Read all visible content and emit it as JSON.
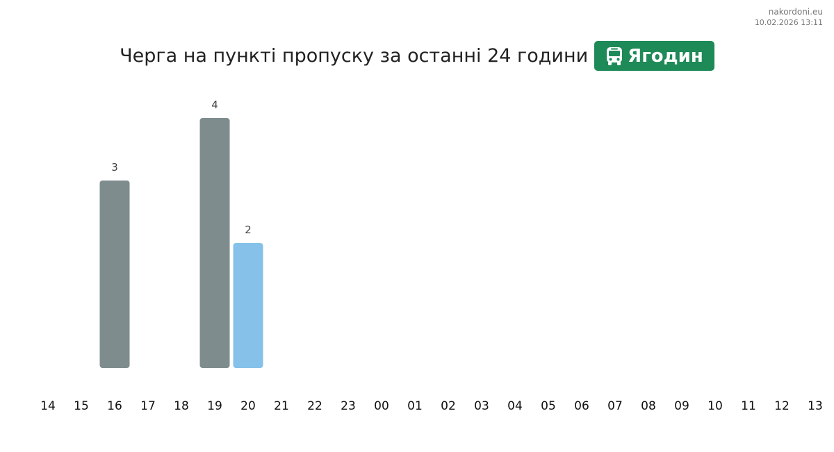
{
  "watermark": {
    "site": "nakordoni.eu",
    "date": "10.02.2026 13:11"
  },
  "chart_data": {
    "type": "bar",
    "title": "Черга на пункті пропуску за останні 24 години",
    "badge": "Ягодин",
    "categories": [
      "14",
      "15",
      "16",
      "17",
      "18",
      "19",
      "20",
      "21",
      "22",
      "23",
      "00",
      "01",
      "02",
      "03",
      "04",
      "05",
      "06",
      "07",
      "08",
      "09",
      "10",
      "11",
      "12",
      "13"
    ],
    "values": [
      null,
      null,
      3,
      null,
      null,
      4,
      2,
      null,
      null,
      null,
      null,
      null,
      null,
      null,
      null,
      null,
      null,
      null,
      null,
      null,
      null,
      null,
      null,
      null
    ],
    "colors": [
      null,
      null,
      "#7f8c8d",
      null,
      null,
      "#7f8c8d",
      "#85c1e9",
      null,
      null,
      null,
      null,
      null,
      null,
      null,
      null,
      null,
      null,
      null,
      null,
      null,
      null,
      null,
      null,
      null
    ],
    "ylim": [
      0,
      4
    ]
  }
}
